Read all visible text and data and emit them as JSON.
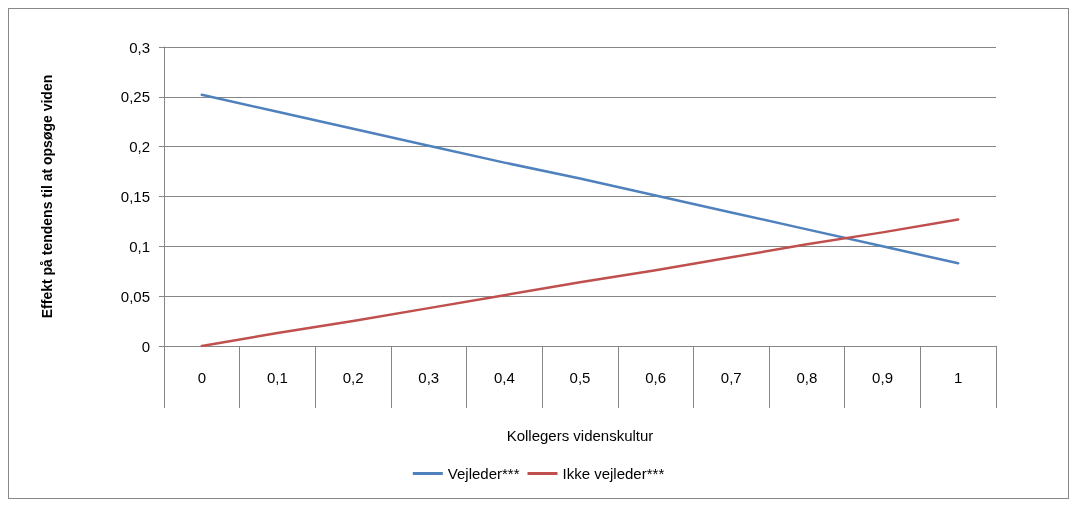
{
  "chart_data": {
    "type": "line",
    "xlabel": "Kollegers videnskultur",
    "ylabel": "Effekt på tendens til at opsøge viden",
    "categories": [
      "0",
      "0,1",
      "0,2",
      "0,3",
      "0,4",
      "0,5",
      "0,6",
      "0,7",
      "0,8",
      "0,9",
      "1"
    ],
    "series": [
      {
        "name": "Vejleder***",
        "color": "#4f81bd",
        "values": [
          0.252,
          0.235,
          0.218,
          0.201,
          0.184,
          0.168,
          0.151,
          0.134,
          0.117,
          0.1,
          0.083
        ]
      },
      {
        "name": "Ikke vejleder***",
        "color": "#c0504d",
        "values": [
          0,
          0.013,
          0.025,
          0.038,
          0.051,
          0.064,
          0.076,
          0.089,
          0.102,
          0.114,
          0.127
        ]
      }
    ],
    "ylim": [
      0,
      0.3
    ],
    "yticks": [
      {
        "value": 0,
        "label": "0"
      },
      {
        "value": 0.05,
        "label": "0,05"
      },
      {
        "value": 0.1,
        "label": "0,1"
      },
      {
        "value": 0.15,
        "label": "0,15"
      },
      {
        "value": 0.2,
        "label": "0,2"
      },
      {
        "value": 0.25,
        "label": "0,25"
      },
      {
        "value": 0.3,
        "label": "0,3"
      }
    ],
    "grid": "y",
    "legend": "bottom",
    "marker": "none",
    "line_style": "solid"
  }
}
